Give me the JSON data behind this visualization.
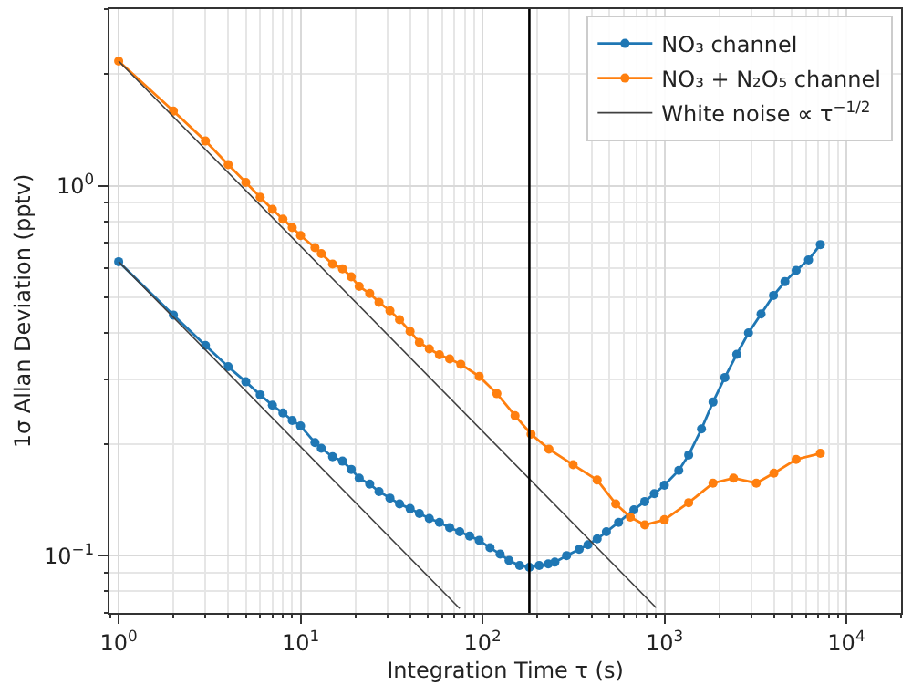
{
  "chart_data": {
    "type": "line",
    "xlabel": "Integration Time τ (s)",
    "ylabel": "1σ Allan Deviation (pptv)",
    "log": "xy",
    "xlim": [
      0.89,
      20000
    ],
    "ylim": [
      0.07,
      3.0
    ],
    "xticks": [
      {
        "value": 1,
        "label": "10$^{0}$"
      },
      {
        "value": 10,
        "label": "10$^{1}$"
      },
      {
        "value": 100,
        "label": "10$^{2}$"
      },
      {
        "value": 1000,
        "label": "10$^{3}$"
      },
      {
        "value": 10000,
        "label": "10$^{4}$"
      }
    ],
    "yticks": [
      {
        "value": 0.1,
        "label": "10$^{−1}$"
      },
      {
        "value": 1,
        "label": "10$^{0}$"
      }
    ],
    "grid": true,
    "legend": "top right",
    "marker": "circle",
    "line_style": "solid",
    "ref_lines": [
      {
        "axis": "x",
        "value": 181,
        "label": null,
        "color": "#000000"
      }
    ],
    "series": [
      {
        "name": "NO₃ channel",
        "color": "#1f77b4",
        "x": [
          1,
          2,
          3,
          4,
          5,
          6,
          7,
          8,
          9,
          10,
          12,
          13,
          15,
          17,
          19,
          21,
          24,
          27,
          31,
          35,
          40,
          45,
          51,
          58,
          66,
          75,
          85,
          96,
          110,
          125,
          140,
          160,
          181,
          205,
          230,
          250,
          290,
          340,
          380,
          427,
          480,
          560,
          680,
          780,
          880,
          1000,
          1200,
          1360,
          1600,
          1850,
          2150,
          2500,
          2900,
          3400,
          3980,
          4600,
          5300,
          6200,
          7200
        ],
        "values": [
          0.623,
          0.447,
          0.37,
          0.324,
          0.295,
          0.272,
          0.255,
          0.243,
          0.232,
          0.224,
          0.202,
          0.195,
          0.185,
          0.18,
          0.171,
          0.162,
          0.156,
          0.149,
          0.143,
          0.138,
          0.134,
          0.13,
          0.126,
          0.123,
          0.119,
          0.116,
          0.113,
          0.11,
          0.105,
          0.101,
          0.097,
          0.094,
          0.093,
          0.094,
          0.095,
          0.096,
          0.1,
          0.104,
          0.107,
          0.111,
          0.116,
          0.123,
          0.133,
          0.14,
          0.147,
          0.155,
          0.17,
          0.187,
          0.22,
          0.26,
          0.303,
          0.35,
          0.4,
          0.45,
          0.505,
          0.55,
          0.59,
          0.63,
          0.693
        ]
      },
      {
        "name": "NO₃ + N₂O₅ channel",
        "color": "#ff7f0e",
        "x": [
          1,
          2,
          3,
          4,
          5,
          6,
          7,
          8,
          9,
          10,
          12,
          13,
          15,
          17,
          19,
          21,
          24,
          27,
          31,
          35,
          40,
          45,
          51,
          58,
          66,
          76,
          96,
          120,
          151,
          185,
          232,
          315,
          427,
          540,
          650,
          780,
          1000,
          1360,
          1850,
          2400,
          3200,
          4000,
          5300,
          7200
        ],
        "values": [
          2.17,
          1.59,
          1.32,
          1.14,
          1.02,
          0.93,
          0.863,
          0.812,
          0.77,
          0.733,
          0.68,
          0.655,
          0.614,
          0.596,
          0.567,
          0.534,
          0.511,
          0.484,
          0.459,
          0.434,
          0.404,
          0.377,
          0.362,
          0.349,
          0.34,
          0.329,
          0.305,
          0.274,
          0.239,
          0.213,
          0.194,
          0.176,
          0.16,
          0.138,
          0.127,
          0.121,
          0.125,
          0.139,
          0.157,
          0.162,
          0.157,
          0.167,
          0.182,
          0.189
        ]
      },
      {
        "name": "White noise ∝ τ$^{−1/2}$",
        "color": "#404040",
        "type": "line",
        "marker": "none",
        "x": [
          1,
          900
        ],
        "values": [
          2.17,
          0.0723
        ]
      },
      {
        "color": "#404040",
        "type": "line",
        "marker": "none",
        "x": [
          1,
          75
        ],
        "values": [
          0.623,
          0.0719
        ]
      }
    ]
  }
}
